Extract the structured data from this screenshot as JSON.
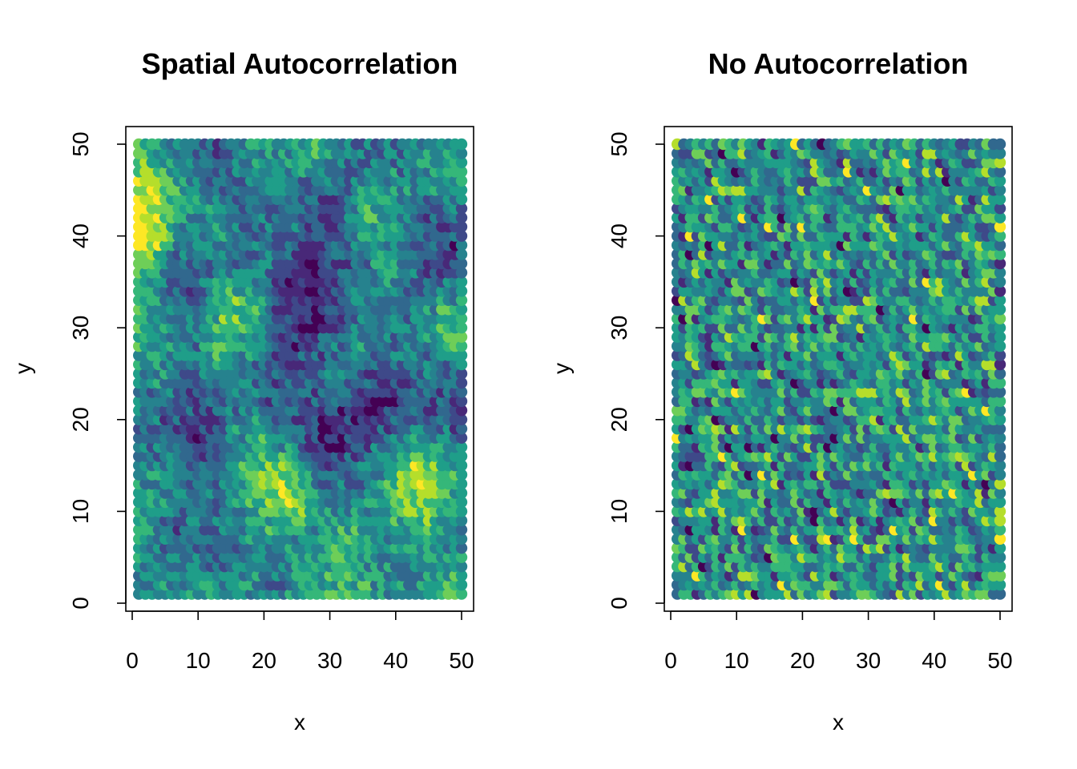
{
  "chart_data": [
    {
      "type": "scatter",
      "title": "Spatial Autocorrelation",
      "xlabel": "x",
      "ylabel": "y",
      "xlim": [
        0,
        50
      ],
      "ylim": [
        0,
        50
      ],
      "x_ticks": [
        "0",
        "10",
        "20",
        "30",
        "40",
        "50"
      ],
      "y_ticks": [
        "0",
        "10",
        "20",
        "30",
        "40",
        "50"
      ],
      "grid": false,
      "legend": "none",
      "point_grid": {
        "x_from": 1,
        "x_to": 50,
        "y_from": 1,
        "y_to": 50,
        "step": 1
      },
      "color_scale": "viridis",
      "pattern": "spatially autocorrelated random field"
    },
    {
      "type": "scatter",
      "title": "No Autocorrelation",
      "xlabel": "x",
      "ylabel": "y",
      "xlim": [
        0,
        50
      ],
      "ylim": [
        0,
        50
      ],
      "x_ticks": [
        "0",
        "10",
        "20",
        "30",
        "40",
        "50"
      ],
      "y_ticks": [
        "0",
        "10",
        "20",
        "30",
        "40",
        "50"
      ],
      "grid": false,
      "legend": "none",
      "point_grid": {
        "x_from": 1,
        "x_to": 50,
        "y_from": 1,
        "y_to": 50,
        "step": 1
      },
      "color_scale": "viridis",
      "pattern": "independent random values"
    }
  ],
  "colors": {
    "viridis": [
      "#440154",
      "#482878",
      "#3e4989",
      "#31688e",
      "#26828e",
      "#1f9e89",
      "#35b779",
      "#6ece58",
      "#b5de2b",
      "#fde725"
    ],
    "axis": "#000000",
    "background": "#ffffff"
  }
}
